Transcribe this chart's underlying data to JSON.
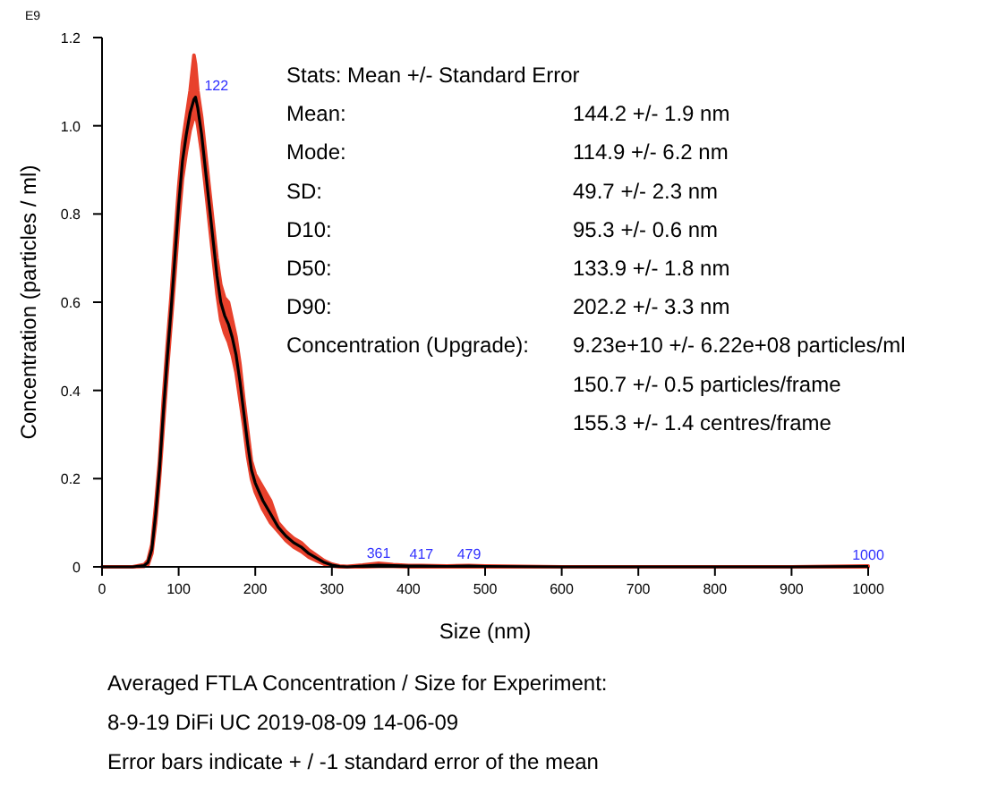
{
  "chart_data": {
    "type": "line",
    "xlabel": "Size (nm)",
    "ylabel": "Concentration (particles / ml)",
    "xlim": [
      0,
      1000
    ],
    "ylim": [
      0,
      1.2
    ],
    "xticks": [
      0,
      100,
      200,
      300,
      400,
      500,
      600,
      700,
      800,
      900,
      1000
    ],
    "yticks": [
      0,
      0.2,
      0.4,
      0.6,
      0.8,
      {
        "value": 1,
        "label": "1.0"
      },
      {
        "value": 1.2,
        "label": "1.2"
      }
    ],
    "grid": false,
    "marker": "none",
    "line_style": "solid",
    "series": [
      {
        "color": "#000000",
        "x": [
          0,
          20,
          40,
          55,
          60,
          65,
          70,
          75,
          80,
          85,
          90,
          95,
          100,
          105,
          110,
          115,
          120,
          122,
          125,
          130,
          135,
          140,
          145,
          150,
          155,
          160,
          165,
          170,
          175,
          180,
          185,
          190,
          195,
          200,
          210,
          220,
          230,
          240,
          250,
          260,
          270,
          280,
          290,
          300,
          310,
          320,
          340,
          361,
          380,
          400,
          417,
          450,
          479,
          500,
          600,
          700,
          800,
          900,
          1000
        ],
        "values": [
          0,
          0,
          0,
          0.003,
          0.01,
          0.04,
          0.12,
          0.22,
          0.35,
          0.47,
          0.58,
          0.7,
          0.82,
          0.92,
          0.98,
          1.03,
          1.06,
          1.065,
          1.04,
          0.98,
          0.9,
          0.82,
          0.74,
          0.66,
          0.6,
          0.57,
          0.55,
          0.52,
          0.48,
          0.42,
          0.35,
          0.28,
          0.22,
          0.19,
          0.15,
          0.12,
          0.09,
          0.07,
          0.055,
          0.045,
          0.03,
          0.02,
          0.01,
          0.004,
          0.001,
          0,
          0.002,
          0.004,
          0.003,
          0.002,
          0.002,
          0.001,
          0.002,
          0.001,
          0,
          0,
          0,
          0,
          0.001
        ],
        "lower": [
          0,
          0,
          0,
          0.001,
          0.005,
          0.03,
          0.1,
          0.2,
          0.32,
          0.44,
          0.55,
          0.66,
          0.78,
          0.88,
          0.94,
          0.99,
          1.02,
          1.03,
          1.0,
          0.94,
          0.86,
          0.78,
          0.7,
          0.62,
          0.56,
          0.53,
          0.51,
          0.48,
          0.44,
          0.38,
          0.32,
          0.25,
          0.2,
          0.17,
          0.13,
          0.1,
          0.08,
          0.06,
          0.045,
          0.035,
          0.022,
          0.014,
          0.006,
          0.002,
          0,
          0,
          0,
          0.001,
          0.001,
          0,
          0,
          0,
          0,
          0,
          0,
          0,
          0,
          0,
          0
        ],
        "upper": [
          0,
          0,
          0,
          0.005,
          0.015,
          0.05,
          0.14,
          0.24,
          0.38,
          0.5,
          0.61,
          0.74,
          0.86,
          0.96,
          1.02,
          1.08,
          1.16,
          1.14,
          1.08,
          1.02,
          0.94,
          0.86,
          0.78,
          0.7,
          0.64,
          0.61,
          0.6,
          0.56,
          0.52,
          0.46,
          0.38,
          0.31,
          0.24,
          0.21,
          0.18,
          0.15,
          0.1,
          0.08,
          0.065,
          0.055,
          0.038,
          0.026,
          0.014,
          0.006,
          0.002,
          0.001,
          0.004,
          0.008,
          0.005,
          0.003,
          0.003,
          0.002,
          0.003,
          0.002,
          0,
          0,
          0,
          0,
          0.002
        ]
      }
    ],
    "annotations": [
      "E9",
      "Stats: Mean +/- Standard Error",
      "Mean:\t144.2 +/- 1.9 nm",
      "Mode:\t114.9 +/- 6.2 nm",
      "SD:\t49.7 +/- 2.3 nm",
      "D10:\t95.3 +/- 0.6 nm",
      "D50:\t133.9 +/- 1.8 nm",
      "D90:\t202.2 +/- 3.3 nm",
      "Concentration (Upgrade):\t9.23e+10 +/- 6.22e+08 particles/ml",
      "\t150.7 +/- 0.5 particles/frame",
      "\t155.3 +/- 1.4 centres/frame",
      "Averaged FTLA Concentration / Size for Experiment:",
      "8-9-19 DiFi UC 2019-08-09 14-06-09",
      "Error bars indicate + / -1 standard error of the mean",
      {
        "text": "122",
        "x": 122,
        "y": 1.065
      },
      {
        "text": "361",
        "x": 361,
        "y": 0.004
      },
      {
        "text": "417",
        "x": 417,
        "y": 0.002
      },
      {
        "text": "479",
        "x": 479,
        "y": 0.002
      },
      {
        "text": "1000",
        "x": 1000,
        "y": 0.001
      }
    ]
  }
}
